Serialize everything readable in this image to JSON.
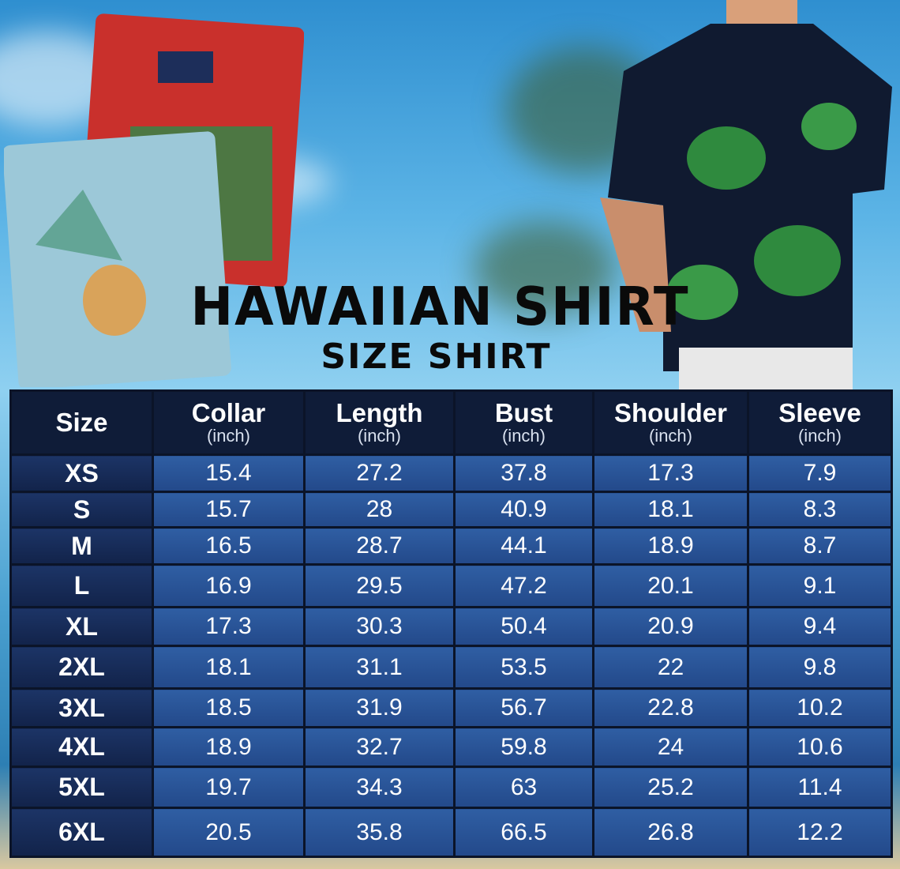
{
  "title": "HAWAIIAN SHIRT",
  "subtitle": "SIZE SHIRT",
  "colors": {
    "header_bg": "#0f1c38",
    "size_col_bg": "#1c3466",
    "cell_bg": "#2f5ea3",
    "title": "#0a0a0a"
  },
  "chart_data": {
    "type": "table",
    "columns": [
      {
        "label": "Size",
        "unit": ""
      },
      {
        "label": "Collar",
        "unit": "(inch)"
      },
      {
        "label": "Length",
        "unit": "(inch)"
      },
      {
        "label": "Bust",
        "unit": "(inch)"
      },
      {
        "label": "Shoulder",
        "unit": "(inch)"
      },
      {
        "label": "Sleeve",
        "unit": "(inch)"
      }
    ],
    "rows": [
      [
        "XS",
        "15.4",
        "27.2",
        "37.8",
        "17.3",
        "7.9"
      ],
      [
        "S",
        "15.7",
        "28",
        "40.9",
        "18.1",
        "8.3"
      ],
      [
        "M",
        "16.5",
        "28.7",
        "44.1",
        "18.9",
        "8.7"
      ],
      [
        "L",
        "16.9",
        "29.5",
        "47.2",
        "20.1",
        "9.1"
      ],
      [
        "XL",
        "17.3",
        "30.3",
        "50.4",
        "20.9",
        "9.4"
      ],
      [
        "2XL",
        "18.1",
        "31.1",
        "53.5",
        "22",
        "9.8"
      ],
      [
        "3XL",
        "18.5",
        "31.9",
        "56.7",
        "22.8",
        "10.2"
      ],
      [
        "4XL",
        "18.9",
        "32.7",
        "59.8",
        "24",
        "10.6"
      ],
      [
        "5XL",
        "19.7",
        "34.3",
        "63",
        "25.2",
        "11.4"
      ],
      [
        "6XL",
        "20.5",
        "35.8",
        "66.5",
        "26.8",
        "12.2"
      ]
    ]
  }
}
